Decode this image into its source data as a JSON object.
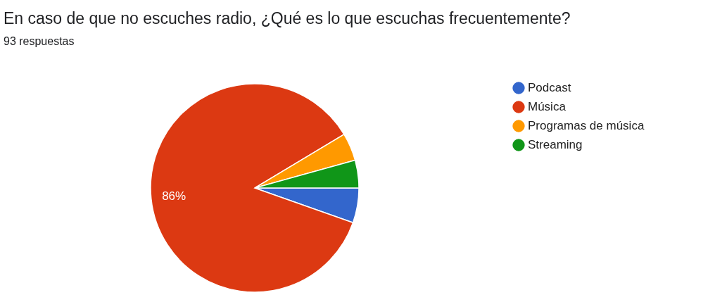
{
  "chart_data": {
    "type": "pie",
    "title": "En caso de que no escuches radio, ¿Qué es lo que escuchas frecuentemente?",
    "subtitle": "93 respuestas",
    "categories": [
      "Podcast",
      "Música",
      "Programas de música",
      "Streaming"
    ],
    "values": [
      5.4,
      86,
      4.3,
      4.3
    ],
    "colors": [
      "#3366cc",
      "#dc3912",
      "#ff9900",
      "#109618"
    ],
    "value_labels": [
      null,
      "86%",
      null,
      null
    ],
    "legend": "right"
  }
}
